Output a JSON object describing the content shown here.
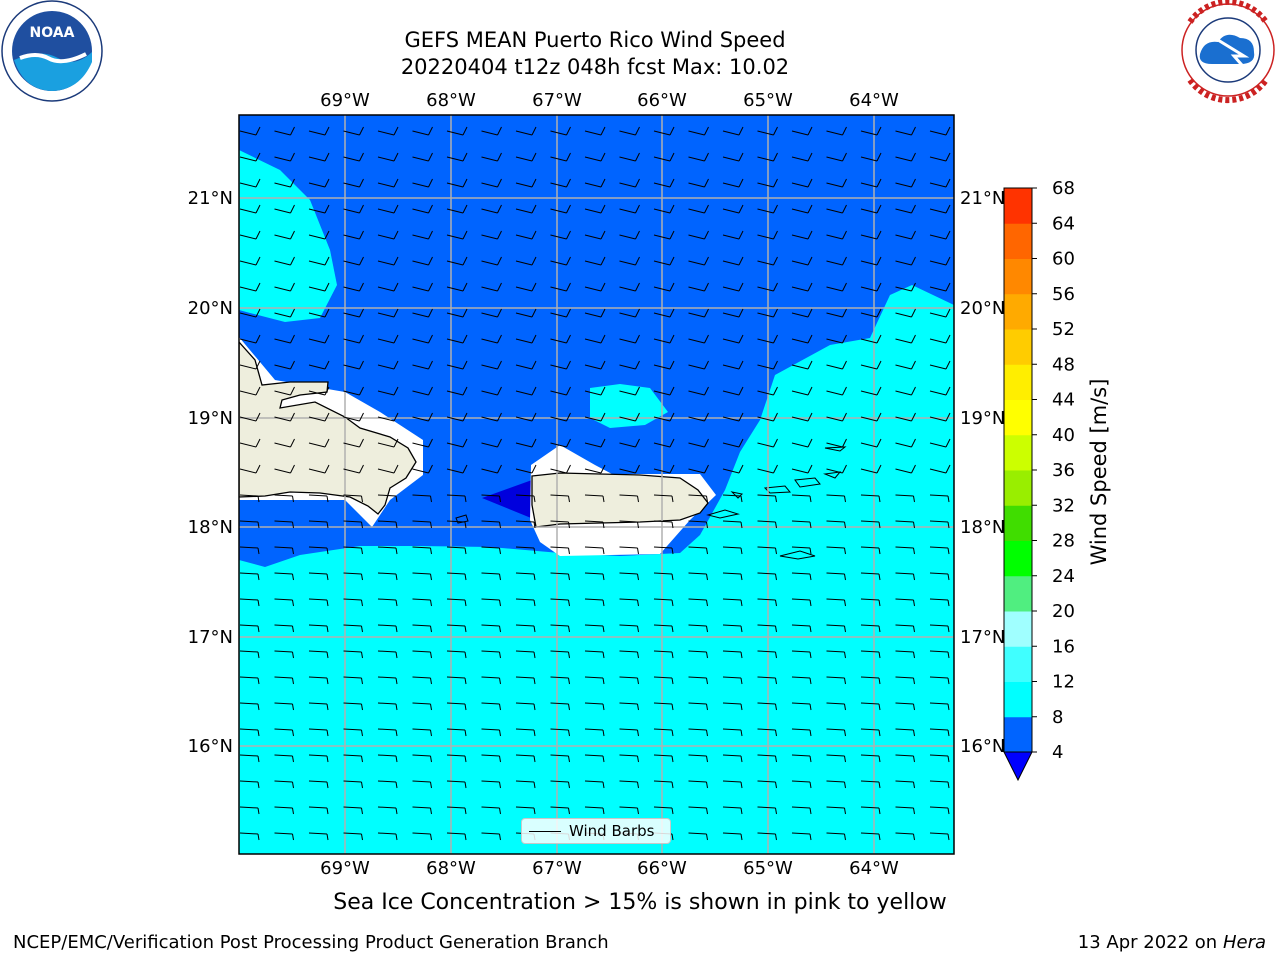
{
  "title": {
    "line1": "GEFS MEAN Puerto Rico Wind Speed",
    "line2": "20220404 t12z 048h fcst   Max: 10.02"
  },
  "logos": {
    "left": {
      "icon": "noaa-logo-icon",
      "text": "NOAA"
    },
    "right": {
      "icon": "nws-logo-icon",
      "text": "NATIONAL WEATHER SERVICE"
    }
  },
  "map": {
    "lon_labels": [
      "69°W",
      "68°W",
      "67°W",
      "66°W",
      "65°W",
      "64°W"
    ],
    "lat_labels": [
      "21°N",
      "20°N",
      "19°N",
      "18°N",
      "17°N",
      "16°N"
    ],
    "colors": {
      "ocean_dark": "#0064ff",
      "ocean_light": "#00ffff",
      "land": "#eeeedd",
      "mask": "#ffffff",
      "deep": "#0000dd",
      "gridline": "#b0b0b0"
    }
  },
  "colorbar": {
    "label": "Wind Speed [m/s]",
    "ticks": [
      "68",
      "64",
      "60",
      "56",
      "52",
      "48",
      "44",
      "40",
      "36",
      "32",
      "28",
      "24",
      "20",
      "16",
      "12",
      "8",
      "4"
    ],
    "colors": [
      "#0000ff",
      "#0064ff",
      "#00ffff",
      "#40ffff",
      "#a0ffff",
      "#50ee80",
      "#00ff00",
      "#40dd00",
      "#99ee00",
      "#ccff00",
      "#ffff00",
      "#ffee00",
      "#ffcc00",
      "#ffaa00",
      "#ff8800",
      "#ff6600",
      "#ff3300",
      "#ff0000"
    ]
  },
  "legend": {
    "label": "Wind Barbs"
  },
  "caption": "Sea Ice Concentration > 15% is shown in pink to yellow",
  "footer": {
    "left": "NCEP/EMC/Verification Post Processing Product Generation Branch",
    "right_prefix": "13 Apr 2022 on ",
    "right_machine": "Hera"
  }
}
